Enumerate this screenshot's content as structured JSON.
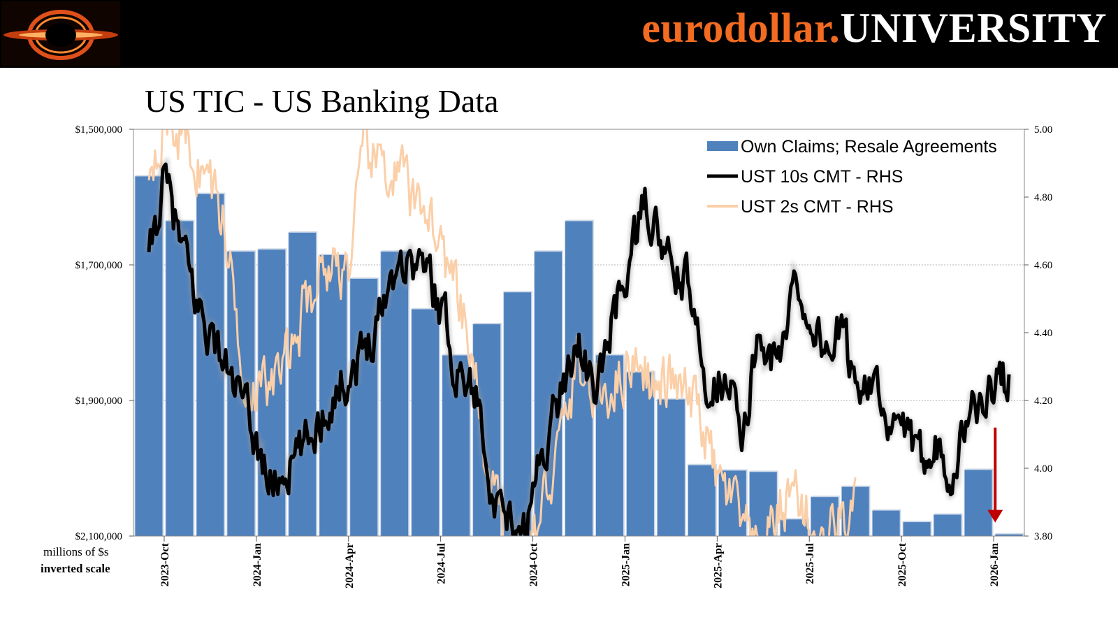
{
  "header": {
    "brand_part1": "eurodollar.",
    "brand_part2": "UNIVERSITY",
    "brand_color": "#f26b21",
    "logo_icon": "black-hole-logo-icon"
  },
  "chart_data": {
    "type": "bar",
    "title": "US TIC - US Banking Data",
    "left_axis": {
      "ticks": [
        1500000,
        1700000,
        1900000,
        2100000
      ],
      "tick_labels": [
        "$1,500,000",
        "$1,700,000",
        "$1,900,000",
        "$2,100,000"
      ],
      "range": [
        1500000,
        2100000
      ],
      "inverted": true,
      "unit_label": "millions of $s",
      "note": "inverted scale"
    },
    "right_axis": {
      "ticks": [
        3.8,
        4.0,
        4.2,
        4.4,
        4.6,
        4.8,
        5.0
      ],
      "tick_labels": [
        "3.80",
        "4.00",
        "4.20",
        "4.40",
        "4.60",
        "4.80",
        "5.00"
      ],
      "range": [
        3.8,
        5.0
      ]
    },
    "x_tick_labels": [
      "2023-Oct",
      "2024-Jan",
      "2024-Apr",
      "2024-Jul",
      "2024-Oct",
      "2025-Jan",
      "2025-Apr",
      "2025-Jul",
      "2025-Oct",
      "2026-Jan"
    ],
    "months": [
      "2023-Sep",
      "2023-Oct",
      "2023-Nov",
      "2023-Dec",
      "2024-Jan",
      "2024-Feb",
      "2024-Mar",
      "2024-Apr",
      "2024-May",
      "2024-Jun",
      "2024-Jul",
      "2024-Aug",
      "2024-Sep",
      "2024-Oct",
      "2024-Nov",
      "2024-Dec",
      "2025-Jan",
      "2025-Feb",
      "2025-Mar",
      "2025-Apr",
      "2025-May",
      "2025-Jun",
      "2025-Jul",
      "2025-Aug",
      "2025-Sep",
      "2025-Oct",
      "2025-Nov",
      "2025-Dec",
      "2026-Jan"
    ],
    "legend": [
      {
        "name": "Own Claims; Resale Agreements",
        "color": "#4f81bd"
      },
      {
        "name": "UST 10s CMT - RHS",
        "color": "#000000"
      },
      {
        "name": "UST 2s CMT - RHS",
        "color": "#fbcfa8"
      }
    ],
    "series": [
      {
        "name": "Own Claims; Resale Agreements",
        "axis": "left",
        "values": [
          1569000,
          1635000,
          1595000,
          1680000,
          1677000,
          1652000,
          1685000,
          1720000,
          1680000,
          1765000,
          1833000,
          1787000,
          1740000,
          1680000,
          1635000,
          1833000,
          1858000,
          1898000,
          1995000,
          2003000,
          2005000,
          2075000,
          2042000,
          2027000,
          2062000,
          2079000,
          2068000,
          2002000,
          2097000
        ]
      },
      {
        "name": "UST 10s CMT - RHS",
        "axis": "right",
        "anchors": [
          [
            0,
            4.6
          ],
          [
            0.5,
            4.85
          ],
          [
            1.5,
            4.5
          ],
          [
            3,
            4.2
          ],
          [
            4,
            3.95
          ],
          [
            5,
            4.05
          ],
          [
            6,
            4.22
          ],
          [
            7,
            4.34
          ],
          [
            8.1,
            4.62
          ],
          [
            9,
            4.6
          ],
          [
            9.6,
            4.45
          ],
          [
            10,
            4.3
          ],
          [
            10.5,
            4.25
          ],
          [
            11,
            4.1
          ],
          [
            11.2,
            3.85
          ],
          [
            11.8,
            3.83
          ],
          [
            12,
            3.78
          ],
          [
            12.3,
            3.83
          ],
          [
            12.8,
            4.05
          ],
          [
            13.5,
            4.25
          ],
          [
            14,
            4.4
          ],
          [
            14.5,
            4.2
          ],
          [
            15,
            4.4
          ],
          [
            15.6,
            4.6
          ],
          [
            16.2,
            4.78
          ],
          [
            17,
            4.58
          ],
          [
            17.5,
            4.55
          ],
          [
            18,
            4.3
          ],
          [
            18.4,
            4.25
          ],
          [
            19,
            4.3
          ],
          [
            19.3,
            4.0
          ],
          [
            19.8,
            4.4
          ],
          [
            20.5,
            4.3
          ],
          [
            21,
            4.55
          ],
          [
            22,
            4.35
          ],
          [
            22.5,
            4.4
          ],
          [
            23,
            4.25
          ],
          [
            23.6,
            4.3
          ],
          [
            24,
            4.05
          ],
          [
            24.5,
            4.15
          ],
          [
            25,
            4.0
          ],
          [
            25.5,
            4.1
          ],
          [
            26.2,
            4.0
          ],
          [
            26.8,
            4.2
          ],
          [
            27.2,
            4.17
          ],
          [
            27.6,
            4.28
          ],
          [
            28,
            4.25
          ]
        ]
      },
      {
        "name": "UST 2s CMT - RHS",
        "axis": "right",
        "anchors": [
          [
            0,
            4.9
          ],
          [
            0.5,
            5.05
          ],
          [
            1.2,
            4.95
          ],
          [
            2,
            4.85
          ],
          [
            2.5,
            4.7
          ],
          [
            3,
            4.35
          ],
          [
            3.5,
            4.2
          ],
          [
            4,
            4.25
          ],
          [
            4.5,
            4.3
          ],
          [
            5,
            4.45
          ],
          [
            5.6,
            4.6
          ],
          [
            6.2,
            4.6
          ],
          [
            6.6,
            4.62
          ],
          [
            7,
            4.9
          ],
          [
            7.6,
            4.9
          ],
          [
            8.3,
            4.85
          ],
          [
            8.6,
            4.75
          ],
          [
            9,
            4.8
          ],
          [
            9.5,
            4.65
          ],
          [
            10,
            4.5
          ],
          [
            10.6,
            4.3
          ],
          [
            11,
            3.95
          ],
          [
            11.4,
            3.85
          ],
          [
            12,
            3.75
          ],
          [
            12.6,
            3.8
          ],
          [
            13,
            3.95
          ],
          [
            13.5,
            4.1
          ],
          [
            14,
            4.32
          ],
          [
            14.5,
            4.2
          ],
          [
            15,
            4.25
          ],
          [
            15.6,
            4.3
          ],
          [
            16,
            4.35
          ],
          [
            16.5,
            4.22
          ],
          [
            17,
            4.25
          ],
          [
            17.5,
            4.2
          ],
          [
            18,
            4.15
          ],
          [
            18.5,
            3.95
          ],
          [
            19,
            3.9
          ],
          [
            19.4,
            3.8
          ],
          [
            19.8,
            3.72
          ],
          [
            20.4,
            3.85
          ],
          [
            21,
            3.95
          ],
          [
            21.5,
            3.85
          ],
          [
            22,
            3.75
          ],
          [
            22.5,
            3.87
          ],
          [
            23,
            3.85
          ]
        ]
      }
    ],
    "annotation": {
      "type": "arrow",
      "color": "#c00000",
      "from_value": 4.12,
      "to_value": 3.84,
      "month_index": 27.55
    }
  }
}
